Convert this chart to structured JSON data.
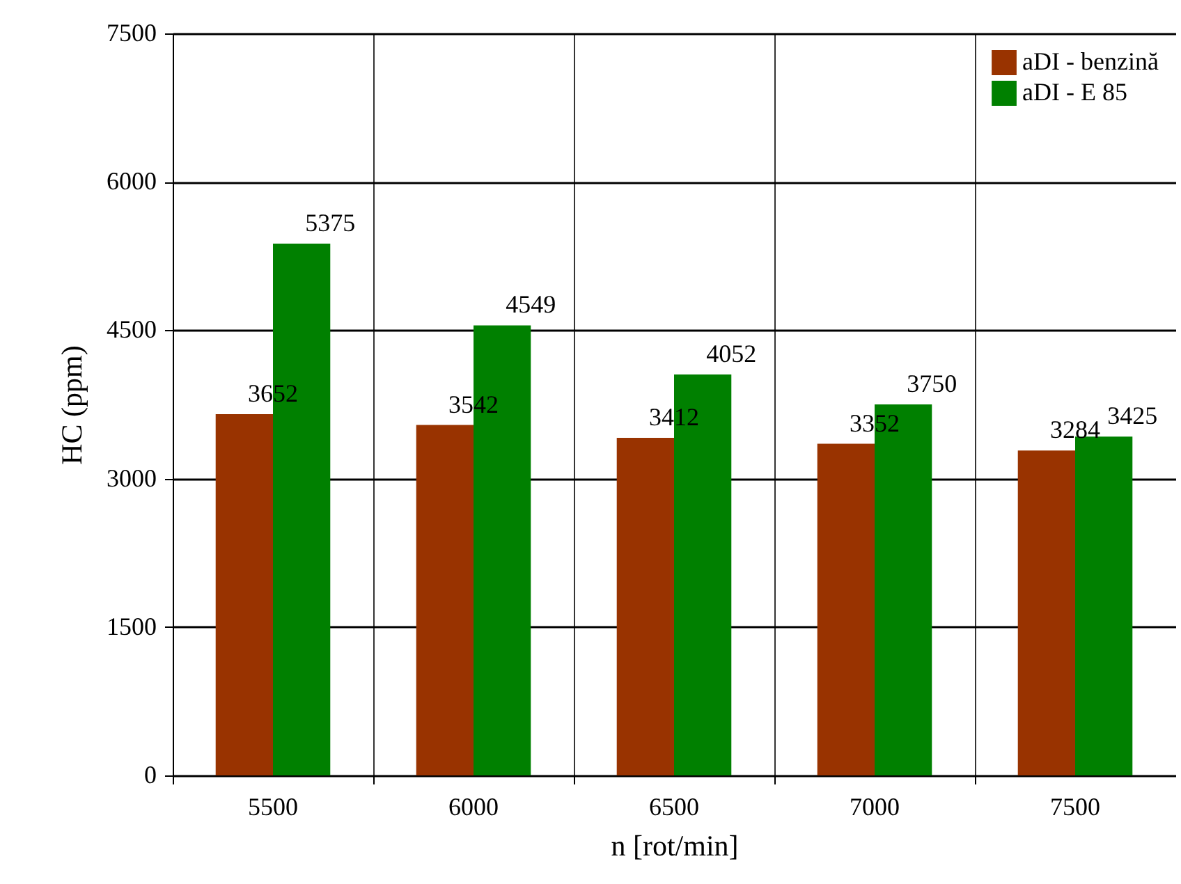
{
  "chart_data": {
    "type": "bar",
    "xlabel": "n [rot/min]",
    "ylabel": "HC (ppm)",
    "categories": [
      "5500",
      "6000",
      "6500",
      "7000",
      "7500"
    ],
    "series": [
      {
        "name": "aDI - benzină",
        "color": "#993300",
        "values": [
          3652,
          3542,
          3412,
          3352,
          3284
        ]
      },
      {
        "name": "aDI - E 85",
        "color": "#008000",
        "values": [
          5375,
          4549,
          4052,
          3750,
          3425
        ]
      }
    ],
    "ylim": [
      0,
      7500
    ],
    "yticks": [
      0,
      1500,
      3000,
      4500,
      6000,
      7500
    ],
    "grid": true,
    "legend": "top right",
    "data_labels": true
  }
}
